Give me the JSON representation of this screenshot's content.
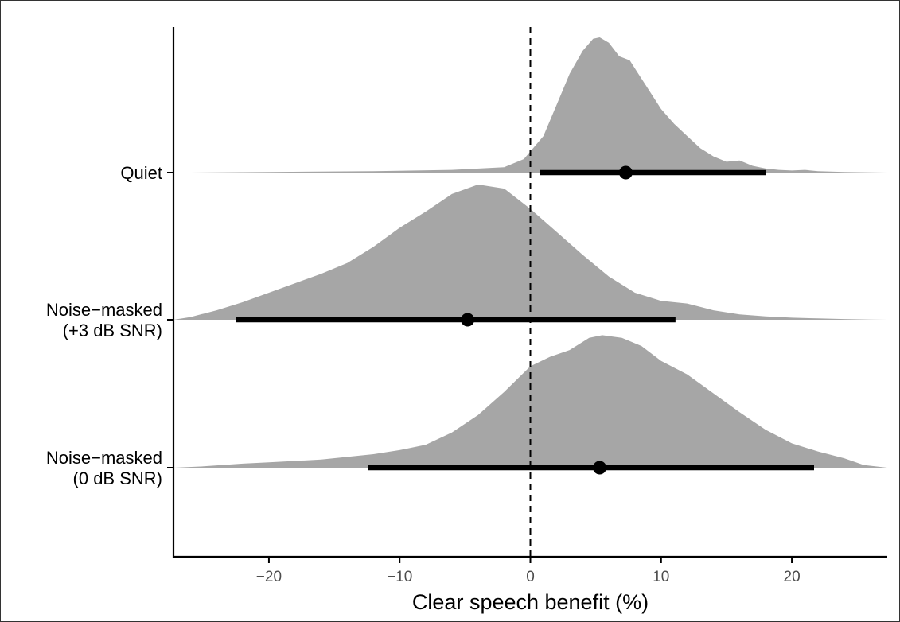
{
  "chart_data": {
    "type": "halfeye",
    "xlabel": "Clear speech benefit (%)",
    "ylabel": "",
    "title": "",
    "xlim": [
      -27.3,
      27.3
    ],
    "xticks": [
      -20,
      -10,
      0,
      10,
      20
    ],
    "xtick_labels": [
      "−20",
      "−10",
      "0",
      "10",
      "20"
    ],
    "reference_line_x": 0,
    "grid": false,
    "legend": "none",
    "colors": {
      "density": "#a6a6a6",
      "interval": "#000000",
      "reference": "#000000",
      "axis": "#000000",
      "tick_text": "#4d4d4d"
    },
    "categories": [
      {
        "label_lines": [
          "Quiet"
        ],
        "point": 7.3,
        "interval": [
          0.7,
          18.0
        ],
        "density": {
          "x": [
            -26,
            -20,
            -12,
            -6,
            -2,
            -0.5,
            1,
            2,
            3,
            4,
            4.8,
            5.3,
            6,
            6.8,
            7.6,
            8.2,
            9,
            10,
            11,
            12,
            13,
            14,
            15,
            16,
            17,
            18,
            19,
            20,
            21,
            22,
            24,
            27.3
          ],
          "y": [
            0,
            0.005,
            0.01,
            0.02,
            0.04,
            0.1,
            0.27,
            0.5,
            0.73,
            0.9,
            0.99,
            1.0,
            0.96,
            0.86,
            0.83,
            0.74,
            0.62,
            0.47,
            0.36,
            0.27,
            0.18,
            0.12,
            0.08,
            0.09,
            0.05,
            0.03,
            0.02,
            0.015,
            0.02,
            0.01,
            0.005,
            0
          ]
        }
      },
      {
        "label_lines": [
          "Noise−masked",
          "(+3 dB SNR)"
        ],
        "point": -4.8,
        "interval": [
          -22.5,
          11.1
        ],
        "density": {
          "x": [
            -27.3,
            -26,
            -24,
            -22,
            -20,
            -18,
            -16,
            -14,
            -12,
            -10,
            -8,
            -6,
            -4,
            -2,
            0,
            2,
            4,
            6,
            8,
            10,
            12,
            14,
            16,
            18,
            20,
            22,
            24,
            26,
            27.3
          ],
          "y": [
            0,
            0.02,
            0.07,
            0.13,
            0.2,
            0.27,
            0.34,
            0.42,
            0.54,
            0.68,
            0.8,
            0.93,
            1.0,
            0.97,
            0.82,
            0.65,
            0.48,
            0.32,
            0.2,
            0.14,
            0.12,
            0.07,
            0.04,
            0.025,
            0.015,
            0.01,
            0.005,
            0.002,
            0
          ]
        }
      },
      {
        "label_lines": [
          "Noise−masked",
          "(0 dB SNR)"
        ],
        "point": 5.3,
        "interval": [
          -12.4,
          21.7
        ],
        "density": {
          "x": [
            -27.3,
            -25,
            -22,
            -20,
            -18,
            -16,
            -14,
            -12,
            -10,
            -8,
            -6,
            -4,
            -2,
            0,
            1.5,
            3,
            4.5,
            5.5,
            7,
            8.5,
            10,
            12,
            14,
            16,
            18,
            20,
            22,
            24,
            25.5,
            27.3
          ],
          "y": [
            0,
            0.01,
            0.03,
            0.04,
            0.05,
            0.06,
            0.08,
            0.1,
            0.13,
            0.17,
            0.26,
            0.39,
            0.56,
            0.75,
            0.82,
            0.87,
            0.96,
            0.98,
            0.96,
            0.9,
            0.79,
            0.69,
            0.55,
            0.41,
            0.28,
            0.18,
            0.12,
            0.07,
            0.02,
            0
          ]
        }
      }
    ]
  }
}
